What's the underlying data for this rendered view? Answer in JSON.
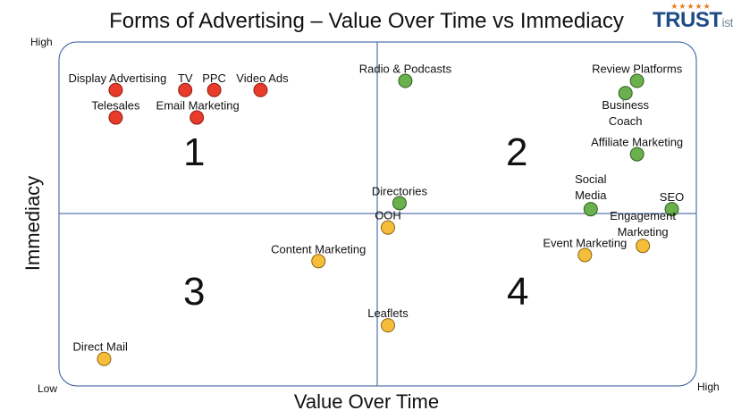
{
  "title": "Forms of Advertising – Value Over Time vs Immediacy",
  "logo": {
    "stars": "★★★★★",
    "brand": "TRUST",
    "suffix": "ist"
  },
  "corner_labels": {
    "high_y": "High",
    "low": "Low",
    "high_x": "High"
  },
  "quadrant_labels": [
    "1",
    "2",
    "3",
    "4"
  ],
  "colors": {
    "red": "#e83b2a",
    "green": "#6ab04c",
    "yellow": "#f6bd3b",
    "axis": "#2f5597"
  },
  "chart_data": {
    "type": "scatter",
    "xlabel": "Value Over Time",
    "ylabel": "Immediacy",
    "xlim": [
      0,
      10
    ],
    "ylim": [
      0,
      10
    ],
    "grid": false,
    "points": [
      {
        "label": "Display Advertising",
        "x": 0.3,
        "y": 9.1,
        "group": "red"
      },
      {
        "label": "TV",
        "x": 1.5,
        "y": 9.1,
        "group": "red"
      },
      {
        "label": "PPC",
        "x": 2.0,
        "y": 9.1,
        "group": "red"
      },
      {
        "label": "Video Ads",
        "x": 2.8,
        "y": 9.1,
        "group": "red"
      },
      {
        "label": "Telesales",
        "x": 0.3,
        "y": 8.2,
        "group": "red"
      },
      {
        "label": "Email Marketing",
        "x": 1.7,
        "y": 8.2,
        "group": "red"
      },
      {
        "label": "Radio & Podcasts",
        "x": 5.3,
        "y": 9.4,
        "group": "green"
      },
      {
        "label": "Review Platforms",
        "x": 9.3,
        "y": 9.4,
        "group": "green"
      },
      {
        "label": "Business Coach",
        "x": 9.1,
        "y": 9.0,
        "group": "green"
      },
      {
        "label": "Affiliate Marketing",
        "x": 9.3,
        "y": 7.0,
        "group": "green"
      },
      {
        "label": "Directories",
        "x": 5.2,
        "y": 5.4,
        "group": "green"
      },
      {
        "label": "Social Media",
        "x": 8.5,
        "y": 5.2,
        "group": "green"
      },
      {
        "label": "SEO",
        "x": 9.9,
        "y": 5.2,
        "group": "green"
      },
      {
        "label": "OOH",
        "x": 5.0,
        "y": 4.6,
        "group": "yellow"
      },
      {
        "label": "Content Marketing",
        "x": 3.8,
        "y": 3.5,
        "group": "yellow"
      },
      {
        "label": "Event Marketing",
        "x": 8.4,
        "y": 3.7,
        "group": "yellow"
      },
      {
        "label": "Engagement Marketing",
        "x": 9.4,
        "y": 4.0,
        "group": "yellow"
      },
      {
        "label": "Leaflets",
        "x": 5.0,
        "y": 1.4,
        "group": "yellow"
      },
      {
        "label": "Direct Mail",
        "x": 0.1,
        "y": 0.3,
        "group": "yellow"
      }
    ]
  }
}
